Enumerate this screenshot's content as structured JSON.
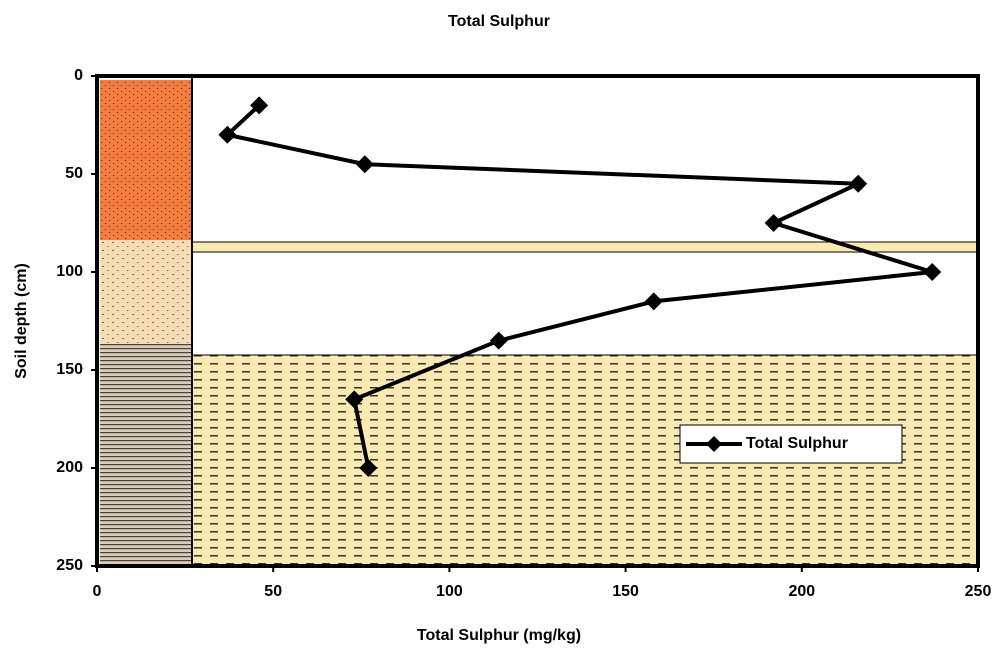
{
  "chart_data": {
    "type": "line",
    "title": "Total Sulphur",
    "x_label": "Total Sulphur (mg/kg)",
    "y_label": "Soil depth (cm)",
    "y": [
      15,
      30,
      45,
      55,
      75,
      100,
      115,
      135,
      165,
      200
    ],
    "series": [
      {
        "name": "Total Sulphur",
        "color": "#000000",
        "values": [
          46,
          37,
          76,
          216,
          192,
          237,
          158,
          114,
          73,
          77
        ]
      }
    ],
    "xlim": [
      0,
      250
    ],
    "xticks": [
      0,
      50,
      100,
      150,
      200,
      250
    ],
    "ylim": [
      0,
      250
    ],
    "yticks": [
      0,
      50,
      100,
      150,
      200,
      250
    ],
    "y_reversed": true,
    "marker": "diamond",
    "legend": "right"
  }
}
